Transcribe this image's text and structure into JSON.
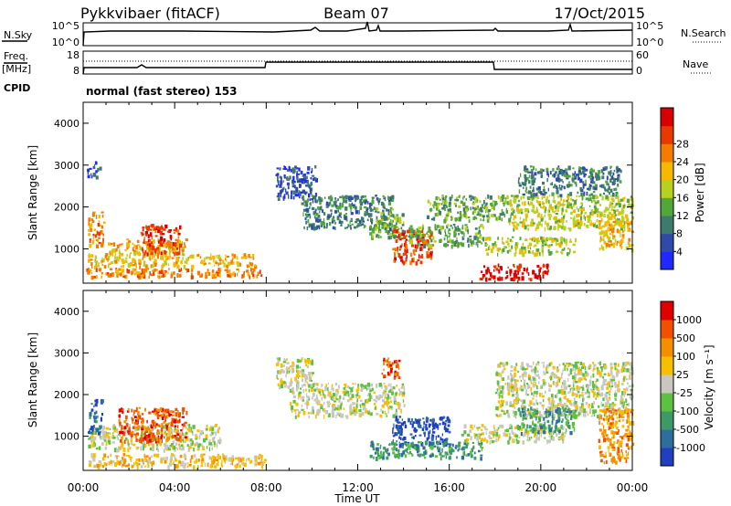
{
  "header": {
    "radar": "Pykkvibaer (fitACF)",
    "beam": "Beam 07",
    "date": "17/Oct/2015"
  },
  "params": {
    "nsky_label": "N.Sky",
    "nsky_ticks": [
      "10^5",
      "10^0"
    ],
    "nsearch_label": "N.Search",
    "nsearch_ticks": [
      "10^5",
      "10^0"
    ],
    "freq_label_top": "Freq.",
    "freq_label_bottom": "[MHz]",
    "freq_ticks": [
      "18",
      "8"
    ],
    "nave_label": "Nave",
    "nave_ticks": [
      "60",
      "0"
    ],
    "cpid_label": "CPID",
    "cpid_text": "normal (fast stereo) 153"
  },
  "chart_data": [
    {
      "type": "heatmap",
      "panel": "power",
      "ylabel": "Slant Range [km]",
      "yticks": [
        "1000",
        "2000",
        "3000",
        "4000"
      ],
      "ylim": [
        180,
        4500
      ],
      "xlim": [
        0,
        24
      ],
      "xticks": [
        "00:00",
        "04:00",
        "08:00",
        "12:00",
        "16:00",
        "20:00",
        "00:00"
      ],
      "colorbar": {
        "title": "Power [dB]",
        "ticks": [
          "4",
          "8",
          "12",
          "16",
          "20",
          "24",
          "28"
        ],
        "colors": [
          "#1f28ff",
          "#2f4aa8",
          "#3f7a6e",
          "#52a63a",
          "#b8d020",
          "#f6b800",
          "#f47c00",
          "#e83a00",
          "#d80000"
        ]
      },
      "regions": [
        {
          "x": [
            0.1,
            7.9
          ],
          "y": [
            350,
            550
          ],
          "level": 6
        },
        {
          "x": [
            0.2,
            7.5
          ],
          "y": [
            600,
            900
          ],
          "level": 5
        },
        {
          "x": [
            1.0,
            4.5
          ],
          "y": [
            900,
            1250
          ],
          "level": 5
        },
        {
          "x": [
            2.5,
            4.2
          ],
          "y": [
            900,
            1600
          ],
          "level": 7
        },
        {
          "x": [
            0.2,
            0.9
          ],
          "y": [
            1100,
            1900
          ],
          "level": 6
        },
        {
          "x": [
            0.1,
            0.7
          ],
          "y": [
            2700,
            3100
          ],
          "level": 1
        },
        {
          "x": [
            8.4,
            10.2
          ],
          "y": [
            2200,
            3000
          ],
          "level": 1
        },
        {
          "x": [
            9.5,
            13.5
          ],
          "y": [
            1500,
            2300
          ],
          "level": 2
        },
        {
          "x": [
            12.5,
            14.0
          ],
          "y": [
            1300,
            2000
          ],
          "level": 3
        },
        {
          "x": [
            13.5,
            15.2
          ],
          "y": [
            700,
            1500
          ],
          "level": 7
        },
        {
          "x": [
            14.2,
            17.5
          ],
          "y": [
            1100,
            1600
          ],
          "level": 3
        },
        {
          "x": [
            15.0,
            18.5
          ],
          "y": [
            1700,
            2300
          ],
          "level": 3
        },
        {
          "x": [
            17.5,
            21.5
          ],
          "y": [
            900,
            1300
          ],
          "level": 4
        },
        {
          "x": [
            17.3,
            20.3
          ],
          "y": [
            300,
            650
          ],
          "level": 8
        },
        {
          "x": [
            18.5,
            24.0
          ],
          "y": [
            1500,
            2300
          ],
          "level": 4
        },
        {
          "x": [
            19.0,
            23.5
          ],
          "y": [
            2300,
            3000
          ],
          "level": 2
        },
        {
          "x": [
            22.5,
            24.0
          ],
          "y": [
            1000,
            1700
          ],
          "level": 5
        }
      ]
    },
    {
      "type": "heatmap",
      "panel": "velocity",
      "ylabel": "Slant Range [km]",
      "yticks": [
        "1000",
        "2000",
        "3000",
        "4000"
      ],
      "ylim": [
        180,
        4500
      ],
      "xlim": [
        0,
        24
      ],
      "xlabel": "Time UT",
      "xticks": [
        "00:00",
        "04:00",
        "08:00",
        "12:00",
        "16:00",
        "20:00",
        "00:00"
      ],
      "colorbar": {
        "title": "Velocity [m s⁻¹]",
        "ticks": [
          "1000",
          "500",
          "100",
          "25",
          "-25",
          "-100",
          "-500",
          "-1000"
        ],
        "colors": [
          "#2040c0",
          "#2e6e9c",
          "#3c9a66",
          "#5cc040",
          "#c8c8c0",
          "#f6c000",
          "#f49000",
          "#f05000",
          "#e00000"
        ]
      },
      "regions": [
        {
          "x": [
            0.2,
            7.9
          ],
          "y": [
            300,
            600
          ],
          "level": 5
        },
        {
          "x": [
            0.2,
            6.0
          ],
          "y": [
            700,
            1300
          ],
          "level": 4
        },
        {
          "x": [
            1.5,
            4.5
          ],
          "y": [
            900,
            1700
          ],
          "level": 7
        },
        {
          "x": [
            0.2,
            0.8
          ],
          "y": [
            1100,
            1900
          ],
          "level": 1
        },
        {
          "x": [
            8.4,
            10.0
          ],
          "y": [
            2200,
            2900
          ],
          "level": 4
        },
        {
          "x": [
            9.0,
            14.0
          ],
          "y": [
            1500,
            2300
          ],
          "level": 4
        },
        {
          "x": [
            13.0,
            13.8
          ],
          "y": [
            2400,
            2900
          ],
          "level": 7
        },
        {
          "x": [
            13.5,
            16.0
          ],
          "y": [
            800,
            1500
          ],
          "level": 0
        },
        {
          "x": [
            12.5,
            17.5
          ],
          "y": [
            500,
            900
          ],
          "level": 2
        },
        {
          "x": [
            16.5,
            21.0
          ],
          "y": [
            900,
            1300
          ],
          "level": 4
        },
        {
          "x": [
            18.0,
            24.0
          ],
          "y": [
            1500,
            2800
          ],
          "level": 4
        },
        {
          "x": [
            19.0,
            21.5
          ],
          "y": [
            1100,
            1700
          ],
          "level": 2
        },
        {
          "x": [
            22.5,
            24.0
          ],
          "y": [
            400,
            1700
          ],
          "level": 6
        }
      ]
    }
  ]
}
